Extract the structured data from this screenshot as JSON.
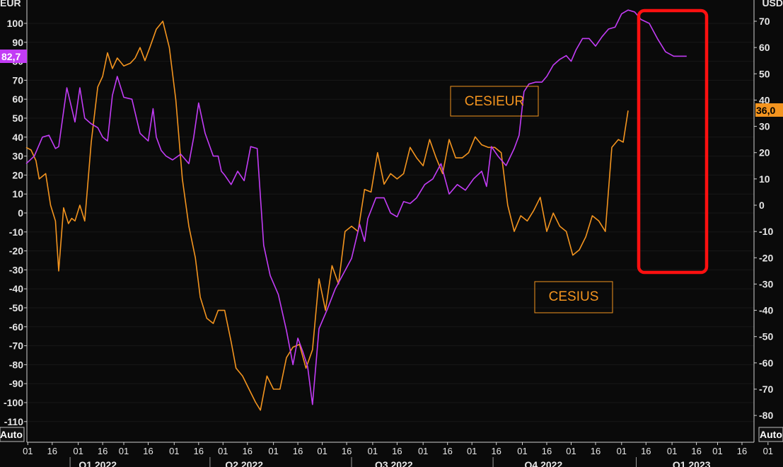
{
  "colors": {
    "cesieur": "#c23cf5",
    "cesius": "#f3941f",
    "highlight": "#ff1010",
    "grid": "#ffffff"
  },
  "axis": {
    "left_unit": "EUR",
    "right_unit": "USD",
    "auto_left": "Auto",
    "auto_right": "Auto"
  },
  "chart_data": {
    "type": "line",
    "series": [
      {
        "name": "CESIEUR",
        "axis": "left",
        "last_value_label": "82,7",
        "x": [
          0,
          5,
          10,
          14,
          18,
          20,
          25,
          30,
          33,
          36,
          40,
          44,
          47,
          50,
          53,
          56,
          60,
          65,
          70,
          75,
          78,
          80,
          83,
          86,
          90,
          95,
          100,
          103,
          106,
          110,
          115,
          118,
          120,
          122,
          126,
          130,
          134,
          138,
          142,
          146,
          150,
          155,
          160,
          164,
          167,
          170,
          173,
          176,
          180,
          185,
          190,
          195,
          200,
          205,
          208,
          210,
          215,
          220,
          224,
          228,
          232,
          236,
          240,
          245,
          250,
          255,
          260,
          265,
          270,
          275,
          280,
          283,
          286,
          290,
          295,
          300,
          303,
          306,
          309,
          313,
          317,
          320,
          324,
          328,
          332,
          335,
          338,
          342,
          346,
          350,
          354,
          358,
          362,
          366,
          370,
          374,
          378,
          383,
          388,
          393,
          398,
          402,
          406
        ],
        "values": [
          26,
          30,
          40,
          41,
          34,
          35,
          66,
          48,
          66,
          50,
          47,
          45,
          40,
          38,
          62,
          72,
          61,
          60,
          42,
          38,
          55,
          40,
          33,
          30,
          28,
          31,
          26,
          40,
          58,
          42,
          30,
          30,
          22,
          20,
          15,
          22,
          17,
          35,
          34,
          -17,
          -33,
          -43,
          -62,
          -80,
          -66,
          -73,
          -81,
          -101,
          -61,
          -51,
          -40,
          -32,
          -24,
          -6,
          -15,
          -3,
          8,
          8,
          0,
          -2,
          6,
          5,
          8,
          15,
          18,
          26,
          10,
          15,
          12,
          18,
          22,
          14,
          35,
          30,
          25,
          34,
          41,
          64,
          68,
          69,
          69,
          72,
          78,
          81,
          83,
          80,
          86,
          92,
          92,
          88,
          93,
          97,
          98,
          105,
          107,
          106,
          102,
          100,
          92,
          85,
          82.7,
          82.7,
          82.7
        ],
        "tick_positions_note": "x in days from 2021-12-31"
      },
      {
        "name": "CESIUS",
        "axis": "right",
        "last_value_label": "36,0",
        "x": [
          0,
          3,
          6,
          8,
          12,
          15,
          18,
          20,
          23,
          26,
          28,
          30,
          33,
          36,
          40,
          44,
          47,
          50,
          53,
          56,
          60,
          64,
          67,
          70,
          73,
          76,
          80,
          84,
          88,
          92,
          96,
          100,
          104,
          107,
          111,
          115,
          118,
          122,
          126,
          129,
          133,
          137,
          141,
          144,
          148,
          152,
          156,
          160,
          164,
          168,
          172,
          176,
          180,
          184,
          188,
          192,
          196,
          200,
          204,
          208,
          212,
          216,
          220,
          224,
          228,
          232,
          236,
          240,
          244,
          248,
          252,
          256,
          260,
          264,
          268,
          272,
          276,
          280,
          284,
          288,
          292,
          296,
          300,
          304,
          308,
          312,
          316,
          320,
          324,
          328,
          332,
          336,
          340,
          344,
          348,
          352,
          356,
          360,
          364,
          367,
          370
        ],
        "values": [
          22,
          21,
          17,
          10,
          12,
          0,
          -6,
          -25,
          -1,
          -7,
          -5,
          -6,
          0,
          -6,
          24,
          45,
          49,
          58,
          52,
          56,
          53,
          54,
          56,
          60,
          55,
          60,
          67,
          70,
          60,
          40,
          10,
          -8,
          -20,
          -35,
          -43,
          -45,
          -40,
          -40,
          -52,
          -62,
          -65,
          -70,
          -75,
          -78,
          -65,
          -70,
          -70,
          -58,
          -54,
          -53,
          -62,
          -55,
          -28,
          -40,
          -23,
          -30,
          -10,
          -8,
          -10,
          6,
          5,
          20,
          8,
          12,
          10,
          12,
          22,
          18,
          15,
          25,
          18,
          12,
          25,
          18,
          18,
          20,
          26,
          23,
          22,
          22,
          20,
          0,
          -10,
          -4,
          -6,
          -2,
          3,
          -10,
          -3,
          -8,
          -10,
          -19,
          -17,
          -12,
          -4,
          -6,
          -10,
          22,
          25,
          24,
          36
        ],
        "tick_positions_note": "x in days from 2021-12-31"
      }
    ],
    "left_ticks": [
      "100",
      "90",
      "80",
      "70",
      "60",
      "50",
      "40",
      "30",
      "20",
      "10",
      "0",
      "-10",
      "-20",
      "-30",
      "-40",
      "-50",
      "-60",
      "-70",
      "-80",
      "-90",
      "-100",
      "-110"
    ],
    "left_values": [
      100,
      90,
      80,
      70,
      60,
      50,
      40,
      30,
      20,
      10,
      0,
      -10,
      -20,
      -30,
      -40,
      -50,
      -60,
      -70,
      -80,
      -90,
      -100,
      -110
    ],
    "right_ticks": [
      "70",
      "60",
      "50",
      "40",
      "30",
      "20",
      "10",
      "0",
      "-10",
      "-20",
      "-30",
      "-40",
      "-50",
      "-60",
      "-70",
      "-80"
    ],
    "right_values": [
      70,
      60,
      50,
      40,
      30,
      20,
      10,
      0,
      -10,
      -20,
      -30,
      -40,
      -50,
      -60,
      -70,
      -80
    ],
    "x_ticks": [
      "01",
      "16",
      "01",
      "16",
      "01",
      "16",
      "01",
      "16",
      "01",
      "16",
      "01",
      "16",
      "01",
      "16",
      "01",
      "16",
      "01",
      "16",
      "01",
      "16",
      "01",
      "16",
      "01",
      "16",
      "01",
      "16",
      "01",
      "16",
      "01",
      "16",
      "01"
    ],
    "x_tick_days": [
      1,
      16,
      32,
      47,
      60,
      75,
      91,
      106,
      121,
      136,
      152,
      167,
      182,
      197,
      213,
      228,
      244,
      259,
      274,
      289,
      305,
      320,
      335,
      350,
      366,
      381,
      397,
      412,
      425,
      440,
      456
    ],
    "quarter_labels": [
      "Q1 2022",
      "Q2 2022",
      "Q3 2022",
      "Q4 2022",
      "Q1 2023"
    ],
    "quarter_days": [
      45,
      135,
      227,
      319,
      410
    ],
    "annotations": [
      "CESIEUR",
      "CESIUS"
    ]
  }
}
